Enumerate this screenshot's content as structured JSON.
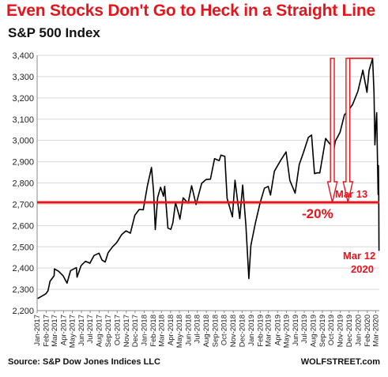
{
  "header": {
    "title": "Even Stocks Don't Go to Heck in a Straight Line",
    "subtitle": "S&P 500 Index"
  },
  "footer": {
    "source": "Source: S&P Dow Jones Indices LLC",
    "brand": "WOLFSTREET.com"
  },
  "colors": {
    "accent": "#e8141b",
    "line": "#000000",
    "grid": "#d9d9d9"
  },
  "chart_data": {
    "type": "line",
    "title": "S&P 500 Index",
    "ylim": [
      2200,
      3400
    ],
    "yticks": [
      2200,
      2300,
      2400,
      2500,
      2600,
      2700,
      2800,
      2900,
      3000,
      3100,
      3200,
      3300,
      3400
    ],
    "ytick_labels": [
      "2,200",
      "2,300",
      "2,400",
      "2,500",
      "2,600",
      "2,700",
      "2,800",
      "2,900",
      "3,000",
      "3,100",
      "3,200",
      "3,300",
      "3,400"
    ],
    "xlim": [
      "2017-01",
      "2020-03"
    ],
    "xtick_labels": [
      "Jan-2017",
      "Feb-2017",
      "Mar-2017",
      "Apr-2017",
      "May-2017",
      "Jun-2017",
      "Jul-2017",
      "Aug-2017",
      "Sep-2017",
      "Oct-2017",
      "Nov-2017",
      "Dec-2017",
      "Jan-2018",
      "Feb-2018",
      "Mar-2018",
      "Apr-2018",
      "May-2018",
      "Jun-2018",
      "Jul-2018",
      "Aug-2018",
      "Sep-2018",
      "Oct-2018",
      "Nov-2018",
      "Dec-2018",
      "Jan-2019",
      "Feb-2019",
      "Mar-2019",
      "Apr-2019",
      "May-2019",
      "Jun-2019",
      "Jul-2019",
      "Aug-2019",
      "Sep-2019",
      "Oct-2019",
      "Nov-2019",
      "Dec-2019",
      "Jan-2020",
      "Feb-2020",
      "Mar-2020"
    ],
    "grid": true,
    "series": [
      {
        "points": [
          [
            "2017-01-03",
            2257
          ],
          [
            "2017-01-17",
            2268
          ],
          [
            "2017-01-31",
            2279
          ],
          [
            "2017-02-07",
            2293
          ],
          [
            "2017-02-14",
            2338
          ],
          [
            "2017-02-28",
            2364
          ],
          [
            "2017-03-01",
            2396
          ],
          [
            "2017-03-15",
            2385
          ],
          [
            "2017-03-31",
            2363
          ],
          [
            "2017-04-13",
            2329
          ],
          [
            "2017-04-25",
            2388
          ],
          [
            "2017-05-15",
            2402
          ],
          [
            "2017-05-17",
            2357
          ],
          [
            "2017-05-31",
            2412
          ],
          [
            "2017-06-15",
            2432
          ],
          [
            "2017-06-30",
            2423
          ],
          [
            "2017-07-14",
            2459
          ],
          [
            "2017-07-31",
            2470
          ],
          [
            "2017-08-10",
            2438
          ],
          [
            "2017-08-21",
            2428
          ],
          [
            "2017-08-31",
            2472
          ],
          [
            "2017-09-15",
            2500
          ],
          [
            "2017-09-29",
            2519
          ],
          [
            "2017-10-16",
            2557
          ],
          [
            "2017-10-31",
            2575
          ],
          [
            "2017-11-15",
            2564
          ],
          [
            "2017-11-30",
            2648
          ],
          [
            "2017-12-15",
            2675
          ],
          [
            "2017-12-29",
            2674
          ],
          [
            "2018-01-12",
            2786
          ],
          [
            "2018-01-26",
            2873
          ],
          [
            "2018-02-02",
            2762
          ],
          [
            "2018-02-08",
            2581
          ],
          [
            "2018-02-16",
            2732
          ],
          [
            "2018-02-26",
            2780
          ],
          [
            "2018-03-08",
            2738
          ],
          [
            "2018-03-12",
            2784
          ],
          [
            "2018-03-23",
            2588
          ],
          [
            "2018-04-02",
            2582
          ],
          [
            "2018-04-09",
            2614
          ],
          [
            "2018-04-18",
            2708
          ],
          [
            "2018-04-30",
            2648
          ],
          [
            "2018-05-03",
            2630
          ],
          [
            "2018-05-14",
            2730
          ],
          [
            "2018-05-31",
            2705
          ],
          [
            "2018-06-12",
            2787
          ],
          [
            "2018-06-27",
            2699
          ],
          [
            "2018-07-16",
            2798
          ],
          [
            "2018-07-31",
            2816
          ],
          [
            "2018-08-15",
            2818
          ],
          [
            "2018-08-29",
            2914
          ],
          [
            "2018-09-14",
            2905
          ],
          [
            "2018-09-20",
            2931
          ],
          [
            "2018-10-03",
            2925
          ],
          [
            "2018-10-11",
            2728
          ],
          [
            "2018-10-29",
            2641
          ],
          [
            "2018-11-07",
            2813
          ],
          [
            "2018-11-23",
            2633
          ],
          [
            "2018-12-03",
            2790
          ],
          [
            "2018-12-14",
            2600
          ],
          [
            "2018-12-24",
            2351
          ],
          [
            "2018-12-31",
            2507
          ],
          [
            "2019-01-15",
            2610
          ],
          [
            "2019-01-31",
            2704
          ],
          [
            "2019-02-15",
            2775
          ],
          [
            "2019-02-28",
            2784
          ],
          [
            "2019-03-08",
            2743
          ],
          [
            "2019-03-21",
            2855
          ],
          [
            "2019-04-12",
            2907
          ],
          [
            "2019-04-30",
            2946
          ],
          [
            "2019-05-13",
            2812
          ],
          [
            "2019-05-31",
            2752
          ],
          [
            "2019-06-14",
            2887
          ],
          [
            "2019-06-28",
            2942
          ],
          [
            "2019-07-15",
            3014
          ],
          [
            "2019-07-26",
            3025
          ],
          [
            "2019-08-05",
            2844
          ],
          [
            "2019-08-15",
            2848
          ],
          [
            "2019-08-23",
            2847
          ],
          [
            "2019-09-12",
            3009
          ],
          [
            "2019-09-30",
            2977
          ],
          [
            "2019-10-02",
            2887
          ],
          [
            "2019-10-15",
            2996
          ],
          [
            "2019-10-31",
            3038
          ],
          [
            "2019-11-15",
            3120
          ],
          [
            "2019-11-29",
            3141
          ],
          [
            "2019-12-13",
            3169
          ],
          [
            "2019-12-31",
            3231
          ],
          [
            "2020-01-17",
            3330
          ],
          [
            "2020-01-31",
            3226
          ],
          [
            "2020-02-07",
            3328
          ],
          [
            "2020-02-19",
            3386
          ],
          [
            "2020-02-24",
            3225
          ],
          [
            "2020-02-27",
            2979
          ],
          [
            "2020-03-02",
            3090
          ],
          [
            "2020-03-04",
            3130
          ],
          [
            "2020-03-06",
            2972
          ],
          [
            "2020-03-09",
            2746
          ],
          [
            "2020-03-10",
            2882
          ],
          [
            "2020-03-11",
            2741
          ],
          [
            "2020-03-12",
            2481
          ]
        ]
      }
    ],
    "annotations": {
      "peak": {
        "from": "2019-11-25",
        "to": "2020-02-19",
        "value": 3386
      },
      "threshold": {
        "value": 2709,
        "label": "Mar 13"
      },
      "drop_label": "-20%",
      "low_label_line1": "Mar 12",
      "low_label_line2": "2020",
      "arrows": [
        {
          "x": "2019-10-05",
          "from": 3386,
          "to": 2709
        },
        {
          "x": "2019-11-27",
          "from": 3386,
          "to": 2709
        }
      ]
    }
  }
}
